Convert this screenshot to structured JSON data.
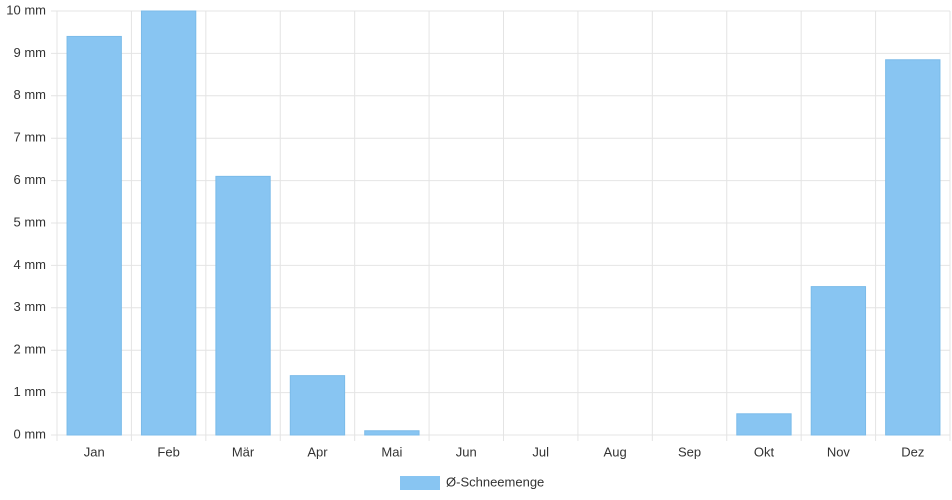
{
  "chart_data": {
    "type": "bar",
    "categories": [
      "Jan",
      "Feb",
      "Mär",
      "Apr",
      "Mai",
      "Jun",
      "Jul",
      "Aug",
      "Sep",
      "Okt",
      "Nov",
      "Dez"
    ],
    "series": [
      {
        "name": "Ø-Schneemenge",
        "color": "#88c5f2",
        "values": [
          9.4,
          10,
          6.1,
          1.4,
          0.1,
          0,
          0,
          0,
          0,
          0.5,
          3.5,
          8.85
        ]
      }
    ],
    "ylim": [
      0,
      10
    ],
    "yticks": [
      {
        "value": 0,
        "label": "0 mm"
      },
      {
        "value": 1,
        "label": "1 mm"
      },
      {
        "value": 2,
        "label": "2 mm"
      },
      {
        "value": 3,
        "label": "3 mm"
      },
      {
        "value": 4,
        "label": "4 mm"
      },
      {
        "value": 5,
        "label": "5 mm"
      },
      {
        "value": 6,
        "label": "6 mm"
      },
      {
        "value": 7,
        "label": "7 mm"
      },
      {
        "value": 8,
        "label": "8 mm"
      },
      {
        "value": 9,
        "label": "9 mm"
      },
      {
        "value": 10,
        "label": "10 mm"
      }
    ],
    "grid": true,
    "legend": "bottom"
  }
}
